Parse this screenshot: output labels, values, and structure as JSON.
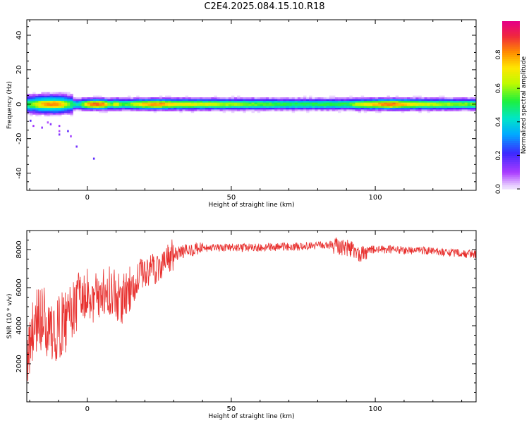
{
  "title": "C2E4.2025.084.15.10.R18",
  "colors": {
    "snr_line": "#e8312f",
    "axis": "#000000",
    "background": "#ffffff"
  },
  "chart_data": [
    {
      "type": "heatmap",
      "name": "spectrogram",
      "xlabel": "Height of straight line (km)",
      "ylabel": "Frequency (Hz)",
      "xlim": [
        -21,
        135
      ],
      "ylim": [
        -50,
        49
      ],
      "xticks": [
        0,
        50,
        100
      ],
      "yticks": [
        -40,
        -20,
        0,
        20,
        40
      ],
      "colorbar": {
        "label": "Normalized spectral amplitude",
        "range": [
          0,
          1
        ],
        "ticks": [
          0.0,
          0.2,
          0.4,
          0.6,
          0.8
        ],
        "tick_labels": [
          "0.0",
          "0.2",
          "0.4",
          "0.6",
          "0.8"
        ],
        "colormap": "rainbow"
      },
      "band": {
        "center_hz": 0,
        "x_profile": [
          [
            -20,
            0.55
          ],
          [
            -15,
            0.8
          ],
          [
            -12,
            0.85
          ],
          [
            -9,
            0.8
          ],
          [
            -6,
            0.55
          ],
          [
            -3,
            0.45
          ],
          [
            0,
            0.8
          ],
          [
            3,
            0.9
          ],
          [
            6,
            0.85
          ],
          [
            8,
            0.55
          ],
          [
            10,
            0.75
          ],
          [
            12,
            0.55
          ],
          [
            16,
            0.65
          ],
          [
            20,
            0.8
          ],
          [
            25,
            0.85
          ],
          [
            30,
            0.75
          ],
          [
            40,
            0.7
          ],
          [
            50,
            0.65
          ],
          [
            60,
            0.6
          ],
          [
            70,
            0.55
          ],
          [
            80,
            0.55
          ],
          [
            90,
            0.55
          ],
          [
            95,
            0.7
          ],
          [
            100,
            0.8
          ],
          [
            105,
            0.9
          ],
          [
            110,
            0.8
          ],
          [
            115,
            0.7
          ],
          [
            125,
            0.65
          ],
          [
            135,
            0.6
          ]
        ]
      }
    },
    {
      "type": "line",
      "name": "snr",
      "xlabel": "Height of straight line (km)",
      "ylabel": "SNR (10 * v/v)",
      "xlim": [
        -21,
        135
      ],
      "ylim": [
        0,
        9000
      ],
      "xticks": [
        0,
        50,
        100
      ],
      "yticks": [
        2000,
        4000,
        6000,
        8000
      ],
      "trend": [
        [
          -21,
          2500
        ],
        [
          -18,
          4200
        ],
        [
          -15,
          4300
        ],
        [
          -12,
          3500
        ],
        [
          -9,
          4000
        ],
        [
          -6,
          4600
        ],
        [
          -3,
          5200
        ],
        [
          0,
          5300
        ],
        [
          3,
          5500
        ],
        [
          6,
          5900
        ],
        [
          9,
          5800
        ],
        [
          12,
          5300
        ],
        [
          15,
          5900
        ],
        [
          18,
          6600
        ],
        [
          21,
          6900
        ],
        [
          24,
          7000
        ],
        [
          27,
          7400
        ],
        [
          30,
          7700
        ],
        [
          33,
          7900
        ],
        [
          36,
          8000
        ],
        [
          40,
          8050
        ],
        [
          50,
          8100
        ],
        [
          60,
          8100
        ],
        [
          70,
          8150
        ],
        [
          80,
          8200
        ],
        [
          85,
          8250
        ],
        [
          88,
          8150
        ],
        [
          92,
          8050
        ],
        [
          95,
          7700
        ],
        [
          98,
          8000
        ],
        [
          105,
          8000
        ],
        [
          115,
          7950
        ],
        [
          125,
          7850
        ],
        [
          135,
          7750
        ]
      ]
    }
  ]
}
